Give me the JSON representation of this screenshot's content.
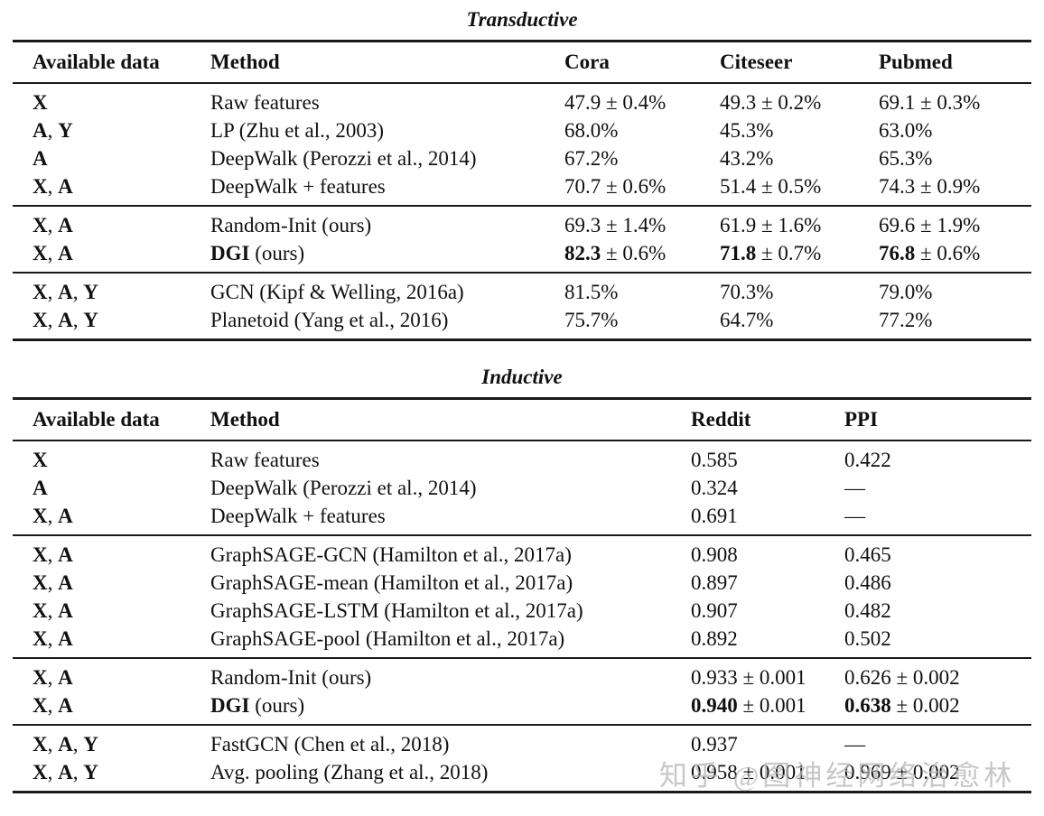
{
  "colors": {
    "page_bg": "#ffffff",
    "text": "#111111",
    "rule": "#1a1a1a",
    "watermark": "#b5b5b5"
  },
  "tables": [
    {
      "title": "Transductive",
      "headers": [
        "Available data",
        "Method",
        "Cora",
        "Citeseer",
        "Pubmed"
      ],
      "groups": [
        [
          [
            "**X**",
            "Raw features",
            "47.9 ± 0.4%",
            "49.3 ± 0.2%",
            "69.1 ± 0.3%"
          ],
          [
            "**A**, **Y**",
            "LP (Zhu et al., 2003)",
            "68.0%",
            "45.3%",
            "63.0%"
          ],
          [
            "**A**",
            "DeepWalk (Perozzi et al., 2014)",
            "67.2%",
            "43.2%",
            "65.3%"
          ],
          [
            "**X**, **A**",
            "DeepWalk + features",
            "70.7 ± 0.6%",
            "51.4 ± 0.5%",
            "74.3 ± 0.9%"
          ]
        ],
        [
          [
            "**X**, **A**",
            "Random-Init (ours)",
            "69.3 ± 1.4%",
            "61.9 ± 1.6%",
            "69.6 ± 1.9%"
          ],
          [
            "**X**, **A**",
            "**DGI** (ours)",
            "**82.3** ± 0.6%",
            "**71.8** ± 0.7%",
            "**76.8** ± 0.6%"
          ]
        ],
        [
          [
            "**X**, **A**, **Y**",
            "GCN (Kipf & Welling, 2016a)",
            "81.5%",
            "70.3%",
            "79.0%"
          ],
          [
            "**X**, **A**, **Y**",
            "Planetoid (Yang et al., 2016)",
            "75.7%",
            "64.7%",
            "77.2%"
          ]
        ]
      ]
    },
    {
      "title": "Inductive",
      "headers": [
        "Available data",
        "Method",
        "Reddit",
        "PPI"
      ],
      "groups": [
        [
          [
            "**X**",
            "Raw features",
            "0.585",
            "0.422"
          ],
          [
            "**A**",
            "DeepWalk (Perozzi et al., 2014)",
            "0.324",
            "—"
          ],
          [
            "**X**, **A**",
            "DeepWalk + features",
            "0.691",
            "—"
          ]
        ],
        [
          [
            "**X**, **A**",
            "GraphSAGE-GCN (Hamilton et al., 2017a)",
            "0.908",
            "0.465"
          ],
          [
            "**X**, **A**",
            "GraphSAGE-mean (Hamilton et al., 2017a)",
            "0.897",
            "0.486"
          ],
          [
            "**X**, **A**",
            "GraphSAGE-LSTM (Hamilton et al., 2017a)",
            "0.907",
            "0.482"
          ],
          [
            "**X**, **A**",
            "GraphSAGE-pool (Hamilton et al., 2017a)",
            "0.892",
            "0.502"
          ]
        ],
        [
          [
            "**X**, **A**",
            "Random-Init (ours)",
            "0.933 ± 0.001",
            "0.626 ± 0.002"
          ],
          [
            "**X**, **A**",
            "**DGI** (ours)",
            "**0.940** ± 0.001",
            "**0.638** ± 0.002"
          ]
        ],
        [
          [
            "**X**, **A**, **Y**",
            "FastGCN (Chen et al., 2018)",
            "0.937",
            "—"
          ],
          [
            "**X**, **A**, **Y**",
            "Avg. pooling (Zhang et al., 2018)",
            "0.958 ± 0.001",
            "0.969 ± 0.002"
          ]
        ]
      ]
    }
  ],
  "watermark": {
    "text": "知乎 @图神经网络治愈林"
  }
}
